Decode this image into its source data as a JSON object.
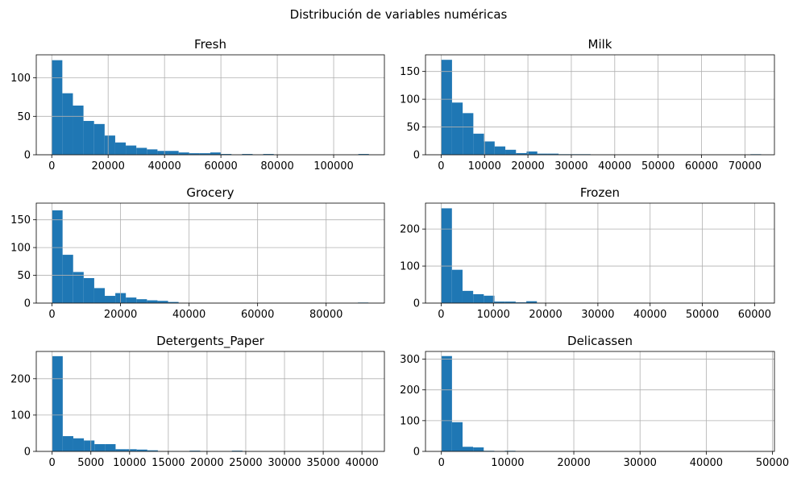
{
  "figure": {
    "suptitle": "Distribución de variables numéricas"
  },
  "colors": {
    "bar": "#1f77b4",
    "grid": "#b0b0b0"
  },
  "chart_data": [
    {
      "type": "bar",
      "title": "Fresh",
      "bins": 30,
      "xlim": [
        -5500,
        118000
      ],
      "ylim": [
        0,
        130
      ],
      "xticks": [
        0,
        20000,
        40000,
        60000,
        80000,
        100000
      ],
      "yticks": [
        0,
        50,
        100
      ],
      "bin_start": 0,
      "bin_width": 3750,
      "counts": [
        123,
        80,
        64,
        44,
        40,
        25,
        16,
        12,
        9,
        7,
        5,
        5,
        3,
        2,
        2,
        3,
        1,
        0,
        1,
        0,
        1,
        0,
        0,
        0,
        0,
        0,
        0,
        0,
        0,
        1
      ],
      "grid": true
    },
    {
      "type": "bar",
      "title": "Milk",
      "bins": 30,
      "xlim": [
        -3600,
        76800
      ],
      "ylim": [
        0,
        180
      ],
      "xticks": [
        0,
        10000,
        20000,
        30000,
        40000,
        50000,
        60000,
        70000
      ],
      "yticks": [
        0,
        50,
        100,
        150
      ],
      "bin_start": 55,
      "bin_width": 2456,
      "counts": [
        171,
        94,
        75,
        38,
        24,
        15,
        9,
        3,
        6,
        2,
        2,
        1,
        1,
        1,
        0,
        0,
        0,
        0,
        0,
        0,
        0,
        0,
        0,
        0,
        0,
        0,
        0,
        0,
        0,
        1
      ],
      "grid": true
    },
    {
      "type": "bar",
      "title": "Grocery",
      "bins": 30,
      "xlim": [
        -4600,
        97000
      ],
      "ylim": [
        0,
        180
      ],
      "xticks": [
        0,
        20000,
        40000,
        60000,
        80000
      ],
      "yticks": [
        0,
        50,
        100,
        150
      ],
      "bin_start": 3,
      "bin_width": 3078,
      "counts": [
        167,
        87,
        56,
        45,
        27,
        13,
        18,
        10,
        7,
        5,
        4,
        2,
        0,
        0,
        0,
        0,
        0,
        0,
        0,
        0,
        0,
        0,
        0,
        0,
        0,
        0,
        0,
        0,
        0,
        1
      ],
      "grid": true
    },
    {
      "type": "bar",
      "title": "Frozen",
      "bins": 30,
      "xlim": [
        -3000,
        63800
      ],
      "ylim": [
        0,
        270
      ],
      "xticks": [
        0,
        10000,
        20000,
        30000,
        40000,
        50000,
        60000
      ],
      "yticks": [
        0,
        100,
        200
      ],
      "bin_start": 25,
      "bin_width": 2034,
      "counts": [
        256,
        90,
        33,
        24,
        20,
        4,
        4,
        2,
        5,
        0,
        0,
        0,
        0,
        0,
        0,
        0,
        0,
        0,
        0,
        0,
        0,
        0,
        0,
        0,
        0,
        0,
        0,
        0,
        0,
        1
      ],
      "grid": true
    },
    {
      "type": "bar",
      "title": "Detergents_Paper",
      "bins": 30,
      "xlim": [
        -2050,
        42900
      ],
      "ylim": [
        0,
        275
      ],
      "xticks": [
        0,
        5000,
        10000,
        15000,
        20000,
        25000,
        30000,
        35000,
        40000
      ],
      "yticks": [
        0,
        100,
        200
      ],
      "bin_start": 3,
      "bin_width": 1365,
      "counts": [
        262,
        42,
        36,
        30,
        20,
        20,
        6,
        6,
        5,
        3,
        0,
        1,
        0,
        2,
        1,
        0,
        0,
        2,
        0,
        0,
        0,
        0,
        0,
        0,
        0,
        0,
        0,
        0,
        0,
        1
      ],
      "grid": true
    },
    {
      "type": "bar",
      "title": "Delicassen",
      "bins": 30,
      "xlim": [
        -2400,
        50300
      ],
      "ylim": [
        0,
        325
      ],
      "xticks": [
        0,
        10000,
        20000,
        30000,
        40000,
        50000
      ],
      "yticks": [
        0,
        100,
        200,
        300
      ],
      "bin_start": 3,
      "bin_width": 1598,
      "counts": [
        310,
        95,
        15,
        13,
        2,
        1,
        2,
        0,
        0,
        0,
        0,
        0,
        0,
        0,
        0,
        0,
        0,
        0,
        0,
        0,
        0,
        0,
        0,
        0,
        0,
        0,
        0,
        0,
        0,
        1
      ],
      "grid": true
    }
  ]
}
